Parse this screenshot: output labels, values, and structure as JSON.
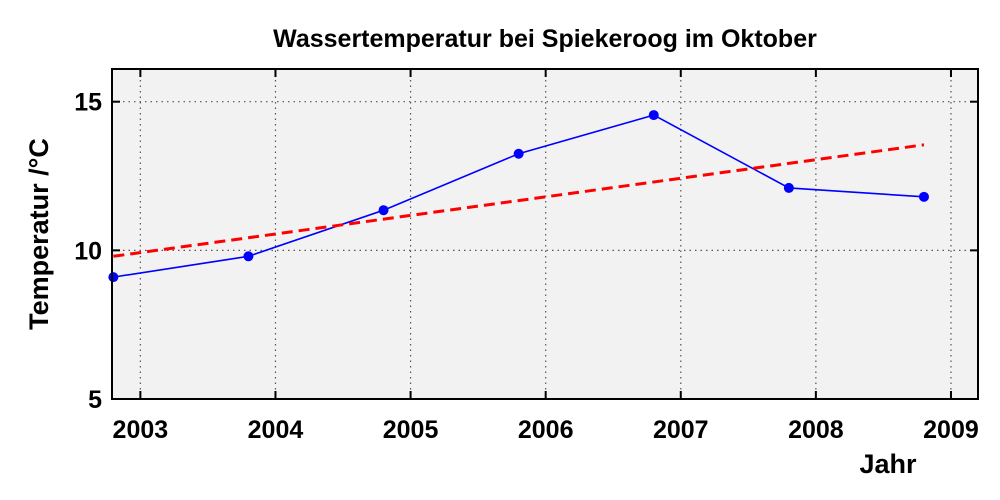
{
  "chart_data": {
    "type": "line",
    "title": "Wassertemperatur bei Spiekeroog im Oktober",
    "xlabel": "Jahr",
    "ylabel": "Temperatur /°C",
    "xlim": [
      2002.79,
      2009.2
    ],
    "ylim": [
      5,
      16.1
    ],
    "x_ticks": [
      2003,
      2004,
      2005,
      2006,
      2007,
      2008,
      2009
    ],
    "y_ticks": [
      5,
      10,
      15
    ],
    "grid": true,
    "legend": "none",
    "series": [
      {
        "x": [
          2002.8,
          2003.8,
          2004.8,
          2005.8,
          2006.8,
          2007.8,
          2008.8
        ],
        "values": [
          9.1,
          9.8,
          11.35,
          13.25,
          14.55,
          12.1,
          11.8
        ],
        "color": "#0000ff",
        "style": "solid-with-markers"
      },
      {
        "x": [
          2002.8,
          2008.8
        ],
        "values": [
          9.8,
          13.55
        ],
        "color": "#ff0000",
        "style": "dashed-trend"
      }
    ]
  }
}
